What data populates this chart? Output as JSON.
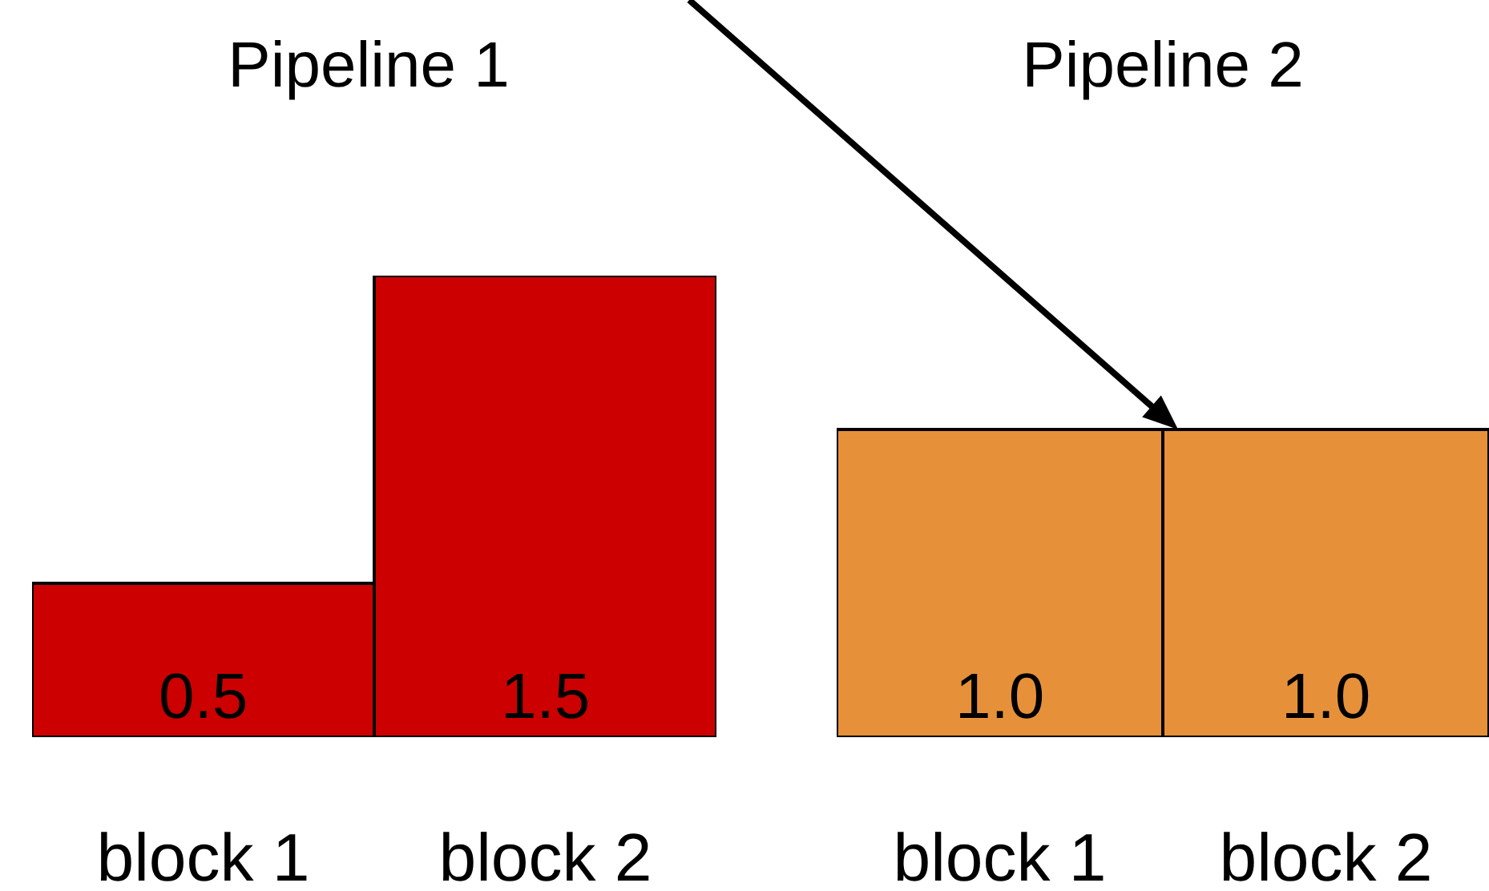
{
  "chart_data": [
    {
      "type": "bar",
      "title": "Pipeline 1",
      "categories": [
        "block 1",
        "block 2"
      ],
      "values": [
        0.5,
        1.5
      ],
      "value_labels": [
        "0.5",
        "1.5"
      ],
      "color": "#cc0000"
    },
    {
      "type": "bar",
      "title": "Pipeline 2",
      "categories": [
        "block 1",
        "block 2"
      ],
      "values": [
        1.0,
        1.0
      ],
      "value_labels": [
        "1.0",
        "1.0"
      ],
      "color": "#e6913a"
    }
  ]
}
